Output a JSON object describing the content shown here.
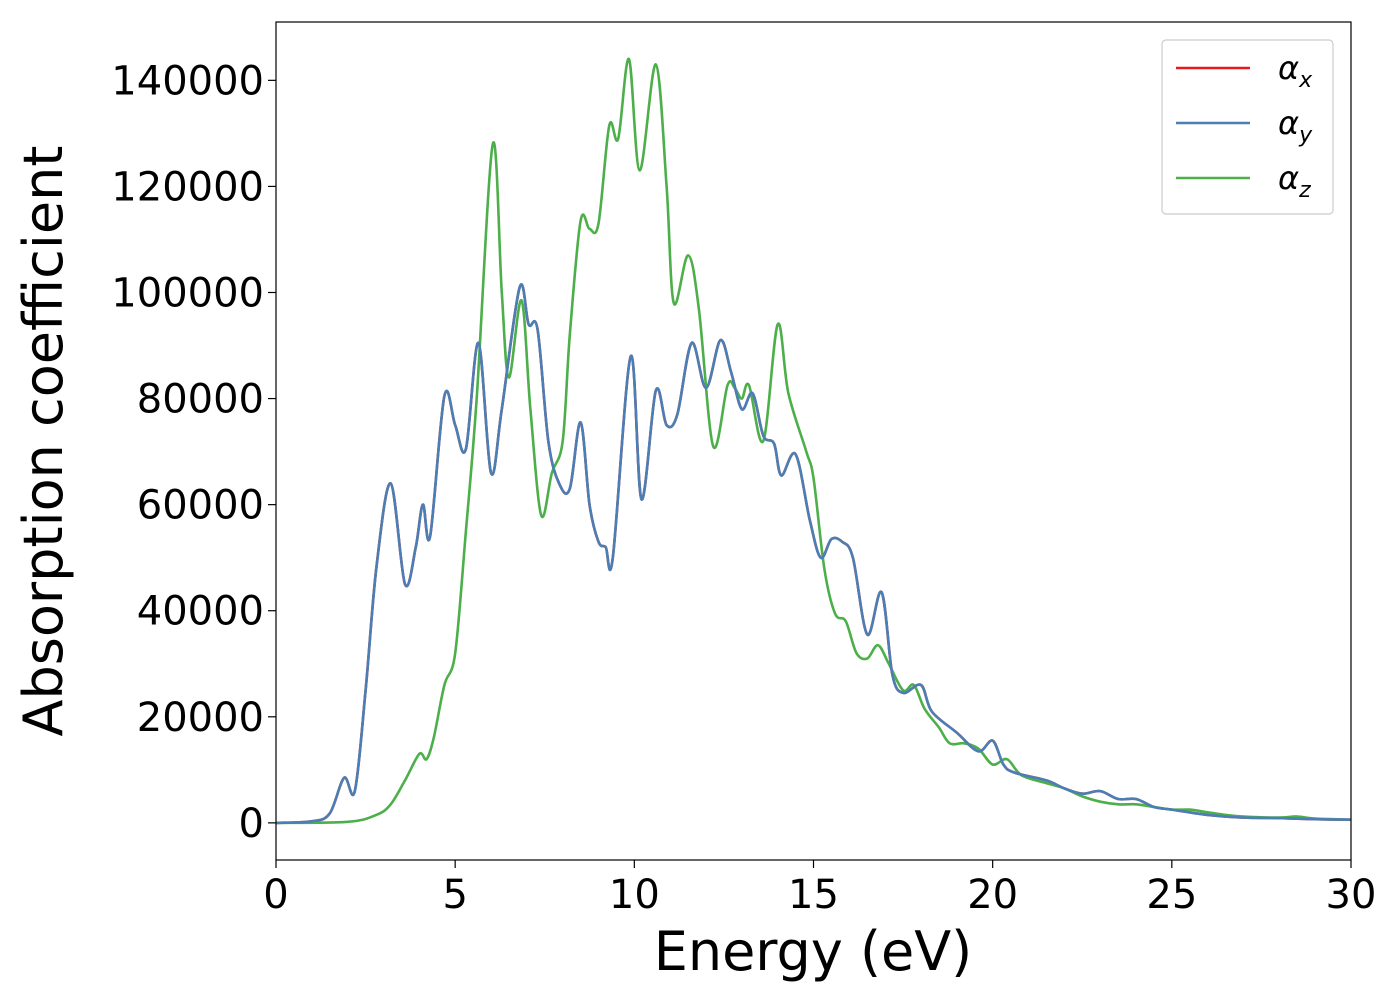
{
  "chart_data": {
    "type": "line",
    "title": "",
    "xlabel": "Energy (eV)",
    "ylabel": "Absorption coefficient",
    "xlim": [
      0,
      30
    ],
    "ylim": [
      -7000,
      151000
    ],
    "xticks": [
      0,
      5,
      10,
      15,
      20,
      25,
      30
    ],
    "yticks": [
      0,
      20000,
      40000,
      60000,
      80000,
      100000,
      120000,
      140000
    ],
    "grid": false,
    "legend_position": "top-right",
    "series": [
      {
        "name": "α_x",
        "legend_symbol": "α",
        "legend_subscript": "x",
        "color": "#e41a1c",
        "points": [
          [
            0,
            0
          ],
          [
            1,
            300
          ],
          [
            1.5,
            1800
          ],
          [
            1.9,
            8500
          ],
          [
            2.2,
            6000
          ],
          [
            2.5,
            25000
          ],
          [
            2.8,
            48000
          ],
          [
            3.2,
            64000
          ],
          [
            3.6,
            45000
          ],
          [
            3.9,
            52000
          ],
          [
            4.1,
            60000
          ],
          [
            4.3,
            54000
          ],
          [
            4.7,
            80500
          ],
          [
            5.0,
            75000
          ],
          [
            5.3,
            70500
          ],
          [
            5.65,
            90500
          ],
          [
            6.0,
            66000
          ],
          [
            6.3,
            78000
          ],
          [
            6.8,
            101000
          ],
          [
            7.05,
            94000
          ],
          [
            7.3,
            93000
          ],
          [
            7.6,
            72000
          ],
          [
            7.9,
            64000
          ],
          [
            8.2,
            63000
          ],
          [
            8.5,
            75500
          ],
          [
            8.75,
            60000
          ],
          [
            9.0,
            53000
          ],
          [
            9.2,
            52000
          ],
          [
            9.4,
            50000
          ],
          [
            9.9,
            88000
          ],
          [
            10.2,
            61000
          ],
          [
            10.6,
            81500
          ],
          [
            10.9,
            75000
          ],
          [
            11.2,
            77000
          ],
          [
            11.6,
            90500
          ],
          [
            12.0,
            82000
          ],
          [
            12.4,
            91000
          ],
          [
            12.7,
            85000
          ],
          [
            13.0,
            78000
          ],
          [
            13.3,
            81000
          ],
          [
            13.6,
            73000
          ],
          [
            13.9,
            71500
          ],
          [
            14.1,
            65500
          ],
          [
            14.5,
            69500
          ],
          [
            14.9,
            57000
          ],
          [
            15.2,
            50000
          ],
          [
            15.5,
            53500
          ],
          [
            15.8,
            53000
          ],
          [
            16.1,
            50000
          ],
          [
            16.5,
            35500
          ],
          [
            16.9,
            43500
          ],
          [
            17.2,
            28000
          ],
          [
            17.5,
            24500
          ],
          [
            18.0,
            26000
          ],
          [
            18.3,
            21000
          ],
          [
            19.0,
            17000
          ],
          [
            19.6,
            13500
          ],
          [
            20.0,
            15500
          ],
          [
            20.3,
            11000
          ],
          [
            20.6,
            9500
          ],
          [
            21.5,
            8000
          ],
          [
            22.0,
            6500
          ],
          [
            22.5,
            5500
          ],
          [
            23.0,
            6000
          ],
          [
            23.5,
            4500
          ],
          [
            24.0,
            4500
          ],
          [
            24.5,
            3000
          ],
          [
            25.0,
            2500
          ],
          [
            26.0,
            1500
          ],
          [
            27.0,
            1000
          ],
          [
            28.0,
            900
          ],
          [
            29.0,
            700
          ],
          [
            30.0,
            600
          ]
        ]
      },
      {
        "name": "α_y",
        "legend_symbol": "α",
        "legend_subscript": "y",
        "color": "#4a7fb5",
        "points": [
          [
            0,
            0
          ],
          [
            1,
            300
          ],
          [
            1.5,
            1800
          ],
          [
            1.9,
            8500
          ],
          [
            2.2,
            6000
          ],
          [
            2.5,
            25000
          ],
          [
            2.8,
            48000
          ],
          [
            3.2,
            64000
          ],
          [
            3.6,
            45000
          ],
          [
            3.9,
            52000
          ],
          [
            4.1,
            60000
          ],
          [
            4.3,
            54000
          ],
          [
            4.7,
            80500
          ],
          [
            5.0,
            75000
          ],
          [
            5.3,
            70500
          ],
          [
            5.65,
            90500
          ],
          [
            6.0,
            66000
          ],
          [
            6.3,
            78000
          ],
          [
            6.8,
            101000
          ],
          [
            7.05,
            94000
          ],
          [
            7.3,
            93000
          ],
          [
            7.6,
            72000
          ],
          [
            7.9,
            64000
          ],
          [
            8.2,
            63000
          ],
          [
            8.5,
            75500
          ],
          [
            8.75,
            60000
          ],
          [
            9.0,
            53000
          ],
          [
            9.2,
            52000
          ],
          [
            9.4,
            50000
          ],
          [
            9.9,
            88000
          ],
          [
            10.2,
            61000
          ],
          [
            10.6,
            81500
          ],
          [
            10.9,
            75000
          ],
          [
            11.2,
            77000
          ],
          [
            11.6,
            90500
          ],
          [
            12.0,
            82000
          ],
          [
            12.4,
            91000
          ],
          [
            12.7,
            85000
          ],
          [
            13.0,
            78000
          ],
          [
            13.3,
            81000
          ],
          [
            13.6,
            73000
          ],
          [
            13.9,
            71500
          ],
          [
            14.1,
            65500
          ],
          [
            14.5,
            69500
          ],
          [
            14.9,
            57000
          ],
          [
            15.2,
            50000
          ],
          [
            15.5,
            53500
          ],
          [
            15.8,
            53000
          ],
          [
            16.1,
            50000
          ],
          [
            16.5,
            35500
          ],
          [
            16.9,
            43500
          ],
          [
            17.2,
            28000
          ],
          [
            17.5,
            24500
          ],
          [
            18.0,
            26000
          ],
          [
            18.3,
            21000
          ],
          [
            19.0,
            17000
          ],
          [
            19.6,
            13500
          ],
          [
            20.0,
            15500
          ],
          [
            20.3,
            11000
          ],
          [
            20.6,
            9500
          ],
          [
            21.5,
            8000
          ],
          [
            22.0,
            6500
          ],
          [
            22.5,
            5500
          ],
          [
            23.0,
            6000
          ],
          [
            23.5,
            4500
          ],
          [
            24.0,
            4500
          ],
          [
            24.5,
            3000
          ],
          [
            25.0,
            2500
          ],
          [
            26.0,
            1500
          ],
          [
            27.0,
            1000
          ],
          [
            28.0,
            900
          ],
          [
            29.0,
            700
          ],
          [
            30.0,
            600
          ]
        ]
      },
      {
        "name": "α_z",
        "legend_symbol": "α",
        "legend_subscript": "z",
        "color": "#4daf4a",
        "points": [
          [
            0,
            0
          ],
          [
            2.0,
            200
          ],
          [
            2.8,
            1500
          ],
          [
            3.2,
            3500
          ],
          [
            3.6,
            8000
          ],
          [
            4.0,
            13000
          ],
          [
            4.2,
            12000
          ],
          [
            4.4,
            16000
          ],
          [
            4.7,
            26000
          ],
          [
            5.0,
            32000
          ],
          [
            5.3,
            55000
          ],
          [
            5.6,
            80000
          ],
          [
            6.05,
            128000
          ],
          [
            6.3,
            100000
          ],
          [
            6.5,
            84000
          ],
          [
            6.85,
            98500
          ],
          [
            7.1,
            78000
          ],
          [
            7.4,
            58000
          ],
          [
            7.7,
            66000
          ],
          [
            8.0,
            72000
          ],
          [
            8.2,
            92000
          ],
          [
            8.5,
            113500
          ],
          [
            8.75,
            112000
          ],
          [
            9.0,
            113000
          ],
          [
            9.3,
            131500
          ],
          [
            9.55,
            129000
          ],
          [
            9.85,
            144000
          ],
          [
            10.15,
            123000
          ],
          [
            10.6,
            143000
          ],
          [
            10.9,
            120000
          ],
          [
            11.1,
            98000
          ],
          [
            11.5,
            107000
          ],
          [
            11.8,
            97000
          ],
          [
            12.2,
            71000
          ],
          [
            12.6,
            82500
          ],
          [
            12.8,
            82000
          ],
          [
            13.0,
            80000
          ],
          [
            13.2,
            82500
          ],
          [
            13.6,
            72000
          ],
          [
            14.0,
            94000
          ],
          [
            14.3,
            81000
          ],
          [
            14.8,
            70000
          ],
          [
            15.0,
            65000
          ],
          [
            15.3,
            48000
          ],
          [
            15.6,
            39500
          ],
          [
            15.9,
            38000
          ],
          [
            16.2,
            32000
          ],
          [
            16.5,
            31000
          ],
          [
            16.8,
            33500
          ],
          [
            17.1,
            30000
          ],
          [
            17.5,
            25000
          ],
          [
            17.8,
            26000
          ],
          [
            18.1,
            21500
          ],
          [
            18.5,
            18000
          ],
          [
            18.8,
            15000
          ],
          [
            19.2,
            15000
          ],
          [
            19.6,
            14000
          ],
          [
            20.0,
            11000
          ],
          [
            20.4,
            12000
          ],
          [
            20.8,
            9000
          ],
          [
            21.5,
            7500
          ],
          [
            22.0,
            6500
          ],
          [
            22.5,
            5000
          ],
          [
            23.0,
            4000
          ],
          [
            23.5,
            3500
          ],
          [
            24.0,
            3500
          ],
          [
            24.5,
            3000
          ],
          [
            25.0,
            2500
          ],
          [
            25.5,
            2500
          ],
          [
            26.0,
            2000
          ],
          [
            26.5,
            1500
          ],
          [
            27.0,
            1200
          ],
          [
            28.0,
            1000
          ],
          [
            28.5,
            1200
          ],
          [
            29.0,
            800
          ],
          [
            30.0,
            600
          ]
        ]
      }
    ]
  }
}
